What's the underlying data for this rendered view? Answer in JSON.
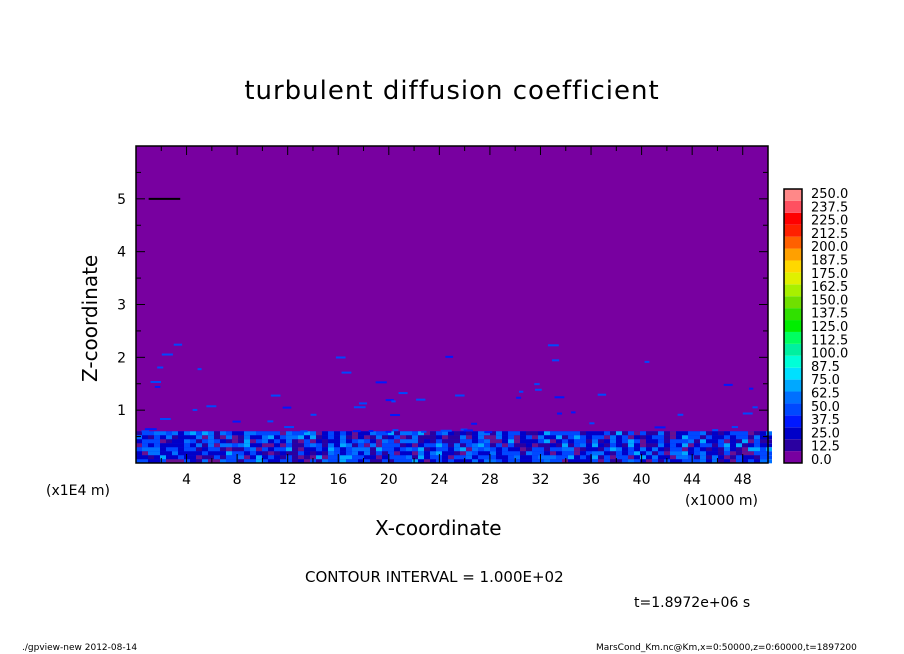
{
  "chart_data": {
    "type": "heatmap",
    "title": "turbulent diffusion coefficient",
    "xlabel": "X-coordinate",
    "ylabel": "Z-coordinate",
    "x_unit": "(x1000 m)",
    "y_unit": "(x1E4 m)",
    "xlim": [
      0,
      50
    ],
    "ylim": [
      0,
      6
    ],
    "x_ticks": [
      4,
      8,
      12,
      16,
      20,
      24,
      28,
      32,
      36,
      40,
      44,
      48
    ],
    "y_ticks": [
      1,
      2,
      3,
      4,
      5
    ],
    "colorbar": {
      "levels": [
        "0.0",
        "12.5",
        "25.0",
        "37.5",
        "50.0",
        "62.5",
        "75.0",
        "87.5",
        "100.0",
        "112.5",
        "125.0",
        "137.5",
        "150.0",
        "162.5",
        "175.0",
        "187.5",
        "200.0",
        "212.5",
        "225.0",
        "237.5",
        "250.0"
      ],
      "colors": [
        "#7800a0",
        "#2a00a0",
        "#0000c8",
        "#0018ff",
        "#0048ff",
        "#0070ff",
        "#00a8ff",
        "#00e0ff",
        "#00ffd8",
        "#00f0a0",
        "#00ff60",
        "#00ee00",
        "#30e000",
        "#70e000",
        "#a8f000",
        "#e0f000",
        "#ffd800",
        "#ffa000",
        "#ff6000",
        "#ff2000",
        "#ff0000",
        "#ff5060",
        "#ff8888"
      ],
      "position": "right"
    },
    "turbulent_layer_top": 0.6,
    "background_value": "0.0"
  },
  "annotations": {
    "contour_interval": "CONTOUR INTERVAL = 1.000E+02",
    "time": "t=1.8972e+06 s"
  },
  "footer": {
    "left": "./gpview-new   2012-08-14",
    "right": "MarsCond_Km.nc@Km,x=0:50000,z=0:60000,t=1897200"
  }
}
